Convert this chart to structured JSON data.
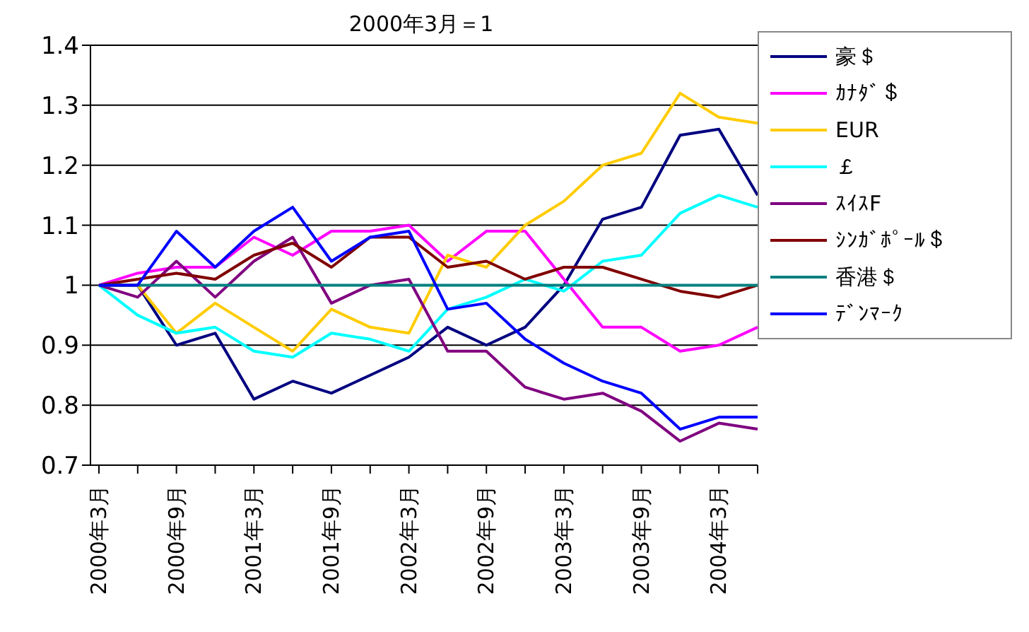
{
  "chart_data": {
    "type": "line",
    "title": "2000年3月＝1",
    "categories": [
      "2000年3月",
      null,
      "2000年9月",
      null,
      "2001年3月",
      null,
      "2001年9月",
      null,
      "2002年3月",
      null,
      "2002年9月",
      null,
      "2003年3月",
      null,
      "2003年9月",
      null,
      "2004年3月",
      null
    ],
    "series": [
      {
        "name": "豪＄",
        "color": "#000080",
        "values": [
          1.0,
          1.0,
          0.9,
          0.92,
          0.81,
          0.84,
          0.82,
          0.85,
          0.88,
          0.93,
          0.9,
          0.93,
          1.0,
          1.11,
          1.13,
          1.25,
          1.26,
          1.15
        ]
      },
      {
        "name": "ｶﾅﾀﾞ＄",
        "color": "#ff00ff",
        "values": [
          1.0,
          1.02,
          1.03,
          1.03,
          1.08,
          1.05,
          1.09,
          1.09,
          1.1,
          1.04,
          1.09,
          1.09,
          1.01,
          0.93,
          0.93,
          0.89,
          0.9,
          0.93
        ]
      },
      {
        "name": "EUR",
        "color": "#ffcc00",
        "values": [
          1.0,
          1.0,
          0.92,
          0.97,
          0.93,
          0.89,
          0.96,
          0.93,
          0.92,
          1.05,
          1.03,
          1.1,
          1.14,
          1.2,
          1.22,
          1.32,
          1.28,
          1.27
        ]
      },
      {
        "name": "￡",
        "color": "#00ffff",
        "values": [
          1.0,
          0.95,
          0.92,
          0.93,
          0.89,
          0.88,
          0.92,
          0.91,
          0.89,
          0.96,
          0.98,
          1.01,
          0.99,
          1.04,
          1.05,
          1.12,
          1.15,
          1.13
        ]
      },
      {
        "name": "ｽｲｽF",
        "color": "#800080",
        "values": [
          1.0,
          0.98,
          1.04,
          0.98,
          1.04,
          1.08,
          0.97,
          1.0,
          1.01,
          0.89,
          0.89,
          0.83,
          0.81,
          0.82,
          0.79,
          0.74,
          0.77,
          0.76
        ]
      },
      {
        "name": "ｼﾝｶﾞﾎﾟｰﾙ＄",
        "color": "#800000",
        "values": [
          1.0,
          1.01,
          1.02,
          1.01,
          1.05,
          1.07,
          1.03,
          1.08,
          1.08,
          1.03,
          1.04,
          1.01,
          1.03,
          1.03,
          1.01,
          0.99,
          0.98,
          1.0
        ]
      },
      {
        "name": "香港＄",
        "color": "#008080",
        "values": [
          1.0,
          1.0,
          1.0,
          1.0,
          1.0,
          1.0,
          1.0,
          1.0,
          1.0,
          1.0,
          1.0,
          1.0,
          1.0,
          1.0,
          1.0,
          1.0,
          1.0,
          1.0
        ]
      },
      {
        "name": "ﾃﾞﾝﾏｰｸ",
        "color": "#0000ff",
        "values": [
          1.0,
          1.0,
          1.09,
          1.03,
          1.09,
          1.13,
          1.04,
          1.08,
          1.09,
          0.96,
          0.97,
          0.91,
          0.87,
          0.84,
          0.82,
          0.76,
          0.78,
          0.78
        ]
      }
    ],
    "ylim": [
      0.7,
      1.4
    ],
    "yticks": [
      0.7,
      0.8,
      0.9,
      1,
      1.1,
      1.2,
      1.3,
      1.4
    ],
    "grid": "y",
    "legend": "right",
    "marker": "none",
    "line_style": "solid"
  }
}
